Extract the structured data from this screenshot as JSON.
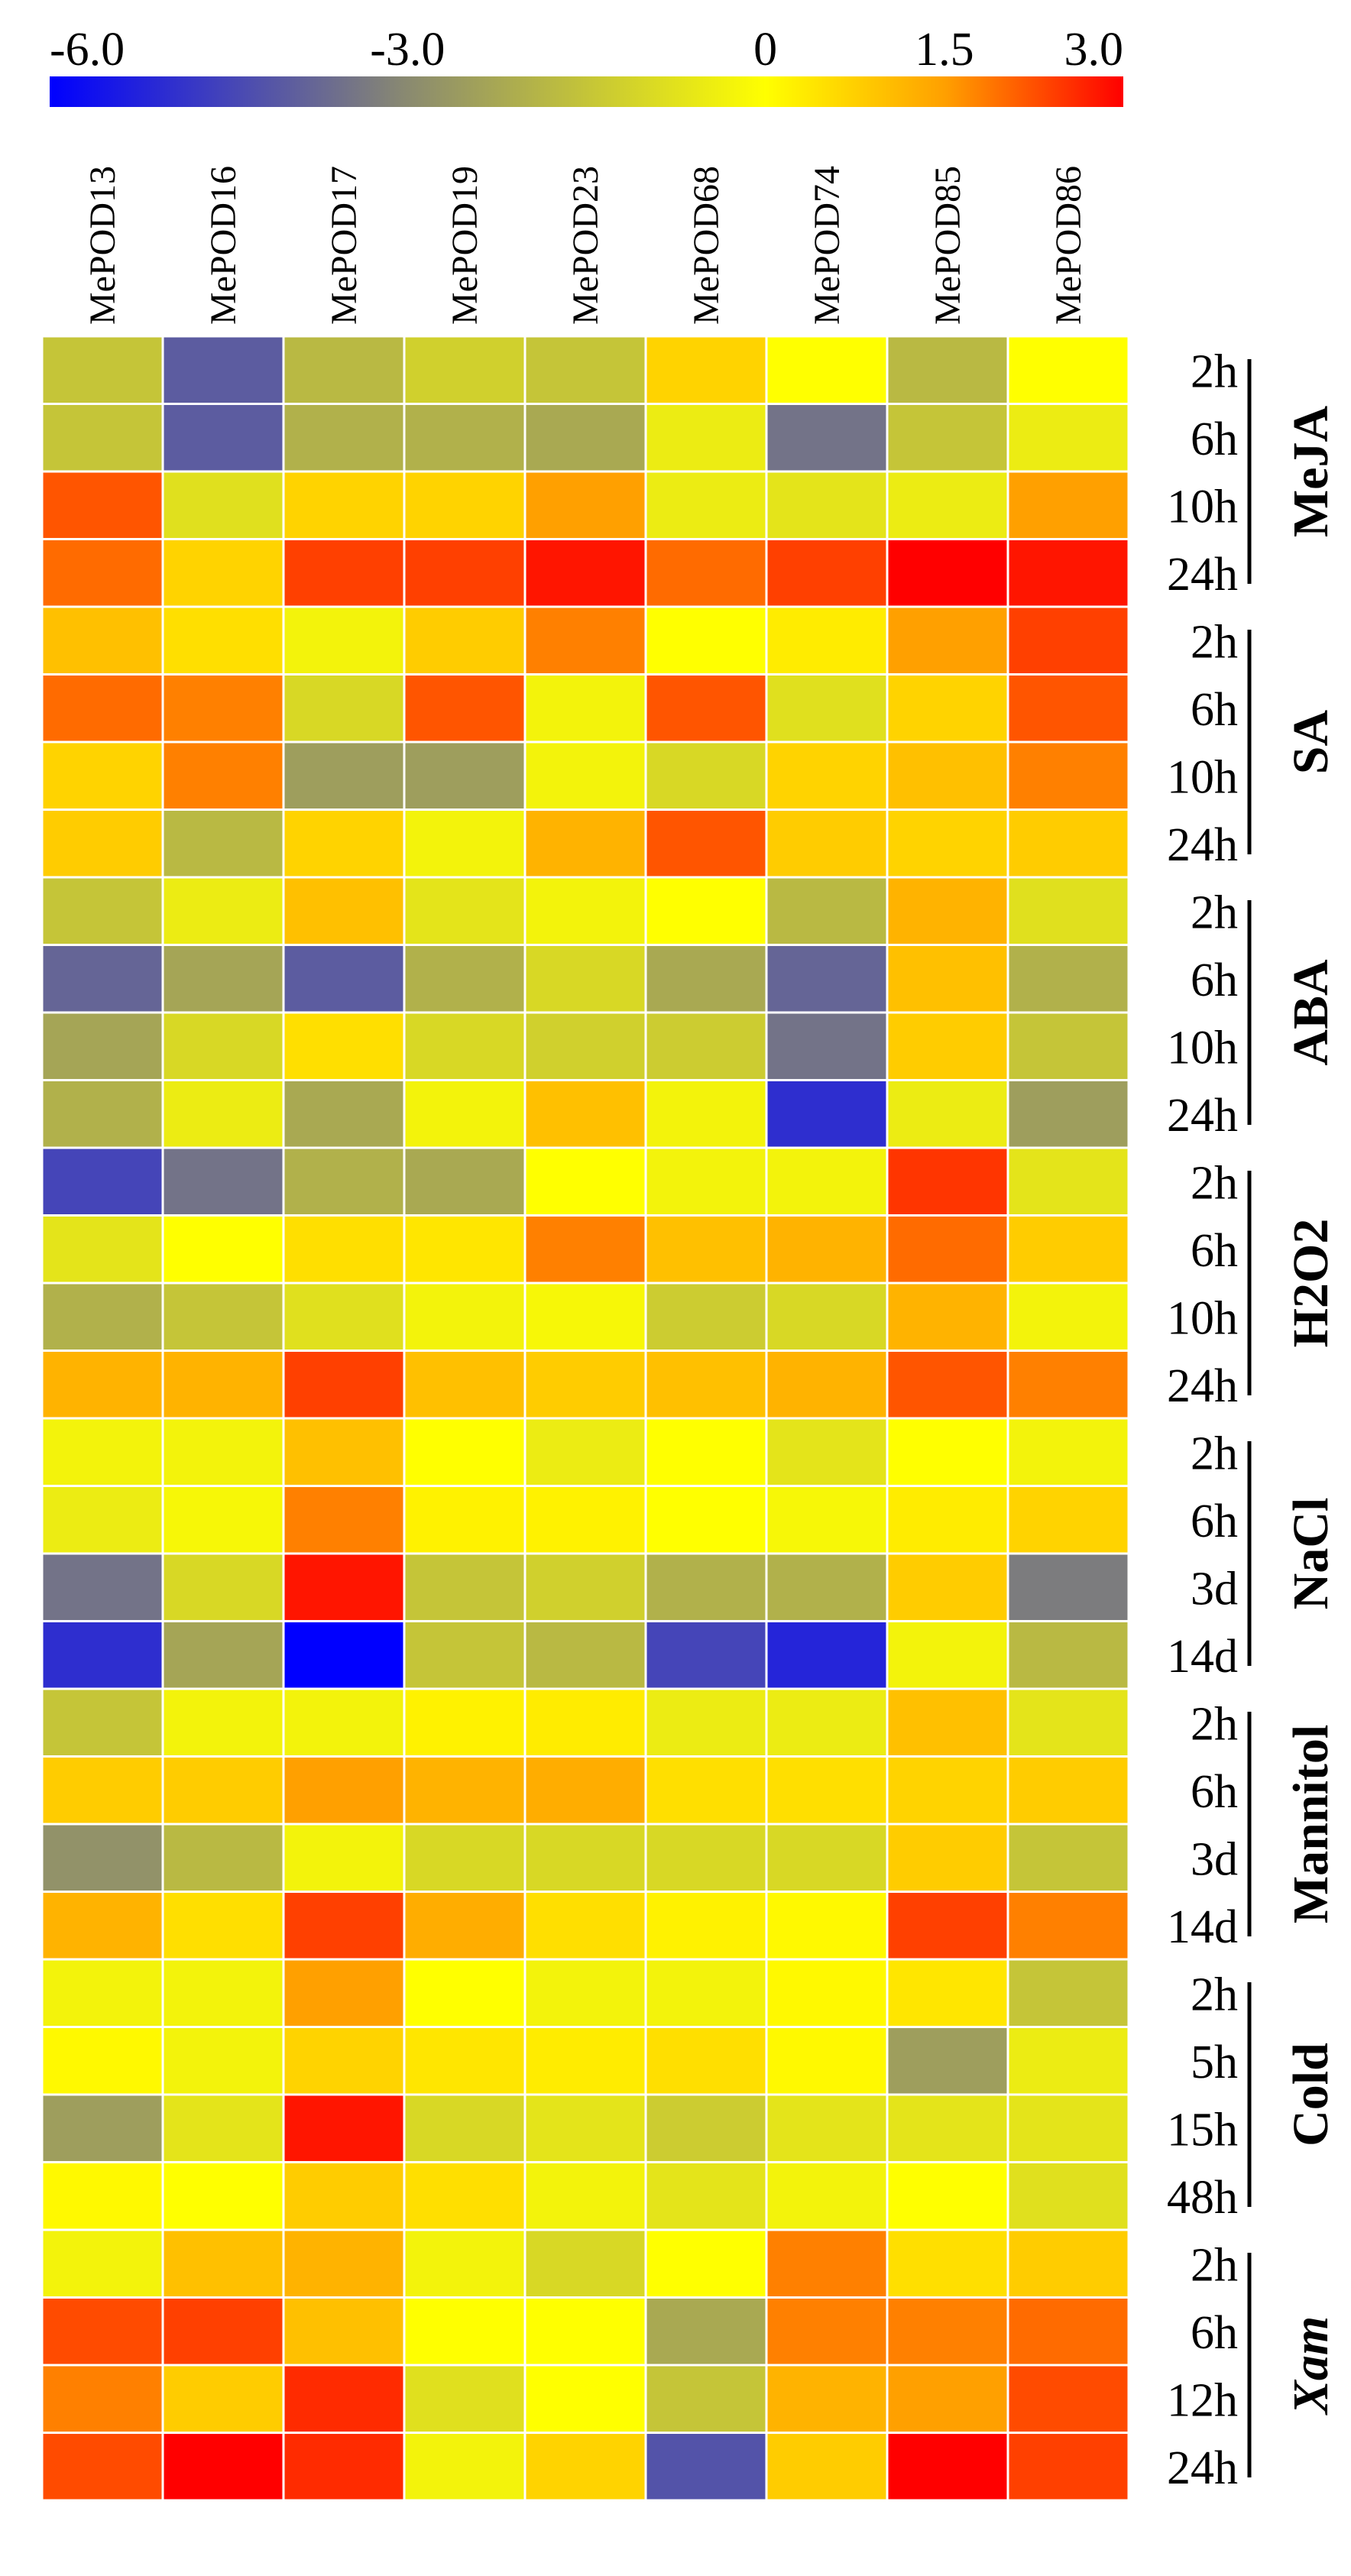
{
  "chart_data": {
    "type": "heatmap",
    "columns": [
      "MePOD13",
      "MePOD16",
      "MePOD17",
      "MePOD19",
      "MePOD23",
      "MePOD68",
      "MePOD74",
      "MePOD85",
      "MePOD86"
    ],
    "colorbar": {
      "min": -6.0,
      "max": 3.0,
      "ticks": [
        "-6.0",
        "-3.0",
        "0",
        "1.5",
        "3.0"
      ],
      "tick_values": [
        -6.0,
        -3.0,
        0,
        1.5,
        3.0
      ],
      "colors": [
        {
          "value": -6.0,
          "color": "#0000ff"
        },
        {
          "value": -3.0,
          "color": "#8a8a70"
        },
        {
          "value": 0,
          "color": "#ffff00"
        },
        {
          "value": 1.5,
          "color": "#ffa000"
        },
        {
          "value": 3.0,
          "color": "#ff0000"
        }
      ]
    },
    "groups": [
      {
        "name": "MeJA",
        "rows": [
          {
            "label": "2h",
            "values": [
              -1.5,
              -4.0,
              -1.8,
              -1.2,
              -1.5,
              0.7,
              0.0,
              -1.8,
              0.0
            ]
          },
          {
            "label": "6h",
            "values": [
              -1.5,
              -4.0,
              -2.0,
              -2.0,
              -2.2,
              -0.5,
              -3.5,
              -1.5,
              -0.5
            ]
          },
          {
            "label": "10h",
            "values": [
              2.2,
              -0.8,
              0.7,
              0.7,
              1.5,
              -0.5,
              -0.7,
              -0.5,
              1.5
            ]
          },
          {
            "label": "24h",
            "values": [
              2.0,
              0.7,
              2.4,
              2.4,
              2.8,
              2.0,
              2.4,
              3.0,
              2.8
            ]
          }
        ]
      },
      {
        "name": "SA",
        "rows": [
          {
            "label": "2h",
            "values": [
              1.0,
              0.5,
              -0.3,
              0.8,
              1.8,
              0.0,
              0.3,
              1.5,
              2.4
            ]
          },
          {
            "label": "6h",
            "values": [
              2.0,
              1.8,
              -1.0,
              2.2,
              -0.3,
              2.2,
              -0.8,
              0.7,
              2.2
            ]
          },
          {
            "label": "10h",
            "values": [
              0.7,
              1.8,
              -2.5,
              -2.5,
              -0.3,
              -1.0,
              0.7,
              1.0,
              1.8
            ]
          },
          {
            "label": "24h",
            "values": [
              0.8,
              -1.8,
              0.7,
              -0.3,
              1.2,
              2.2,
              0.8,
              0.7,
              0.8
            ]
          }
        ]
      },
      {
        "name": "ABA",
        "rows": [
          {
            "label": "2h",
            "values": [
              -1.5,
              -0.5,
              1.0,
              -0.7,
              -0.3,
              0.0,
              -1.8,
              1.2,
              -0.8
            ]
          },
          {
            "label": "6h",
            "values": [
              -3.8,
              -2.3,
              -4.0,
              -2.0,
              -1.0,
              -2.2,
              -3.8,
              1.0,
              -2.0
            ]
          },
          {
            "label": "10h",
            "values": [
              -2.3,
              -1.0,
              0.5,
              -1.0,
              -1.2,
              -1.3,
              -3.5,
              0.8,
              -1.5
            ]
          },
          {
            "label": "24h",
            "values": [
              -2.0,
              -0.5,
              -2.2,
              -0.3,
              1.0,
              -0.3,
              -5.0,
              -0.5,
              -2.5
            ]
          }
        ]
      },
      {
        "name": "H2O2",
        "rows": [
          {
            "label": "2h",
            "values": [
              -4.5,
              -3.5,
              -2.0,
              -2.2,
              0.0,
              -0.3,
              -0.3,
              2.5,
              -0.7
            ]
          },
          {
            "label": "6h",
            "values": [
              -0.7,
              0.0,
              0.5,
              0.4,
              1.8,
              1.0,
              1.2,
              2.0,
              0.8
            ]
          },
          {
            "label": "10h",
            "values": [
              -2.0,
              -1.5,
              -0.8,
              -0.3,
              -0.2,
              -1.3,
              -1.0,
              1.2,
              -0.3
            ]
          },
          {
            "label": "24h",
            "values": [
              1.2,
              1.2,
              2.4,
              1.0,
              0.8,
              1.0,
              1.2,
              2.2,
              1.8
            ]
          }
        ]
      },
      {
        "name": "NaCl",
        "rows": [
          {
            "label": "2h",
            "values": [
              -0.3,
              -0.3,
              1.0,
              0.0,
              -0.5,
              0.0,
              -0.7,
              0.0,
              -0.3
            ]
          },
          {
            "label": "6h",
            "values": [
              -0.5,
              -0.2,
              1.8,
              0.2,
              0.2,
              0.0,
              -0.2,
              0.3,
              0.7
            ]
          },
          {
            "label": "3d",
            "values": [
              -3.5,
              -1.0,
              2.8,
              -1.5,
              -1.2,
              -2.0,
              -2.0,
              0.8,
              -3.3
            ]
          },
          {
            "label": "14d",
            "values": [
              -5.0,
              -2.3,
              -6.0,
              -1.5,
              -1.8,
              -4.5,
              -5.2,
              -0.3,
              -1.8
            ]
          }
        ]
      },
      {
        "name": "Mannitol",
        "rows": [
          {
            "label": "2h",
            "values": [
              -1.5,
              -0.3,
              -0.3,
              0.2,
              0.3,
              -0.5,
              -0.5,
              1.0,
              -0.7
            ]
          },
          {
            "label": "6h",
            "values": [
              0.8,
              0.8,
              1.5,
              1.2,
              1.3,
              0.5,
              0.5,
              0.7,
              0.8
            ]
          },
          {
            "label": "3d",
            "values": [
              -2.8,
              -1.8,
              -0.3,
              -1.0,
              -1.0,
              -1.0,
              -1.0,
              0.8,
              -1.5
            ]
          },
          {
            "label": "14d",
            "values": [
              1.2,
              0.5,
              2.4,
              1.3,
              0.5,
              0.2,
              0.1,
              2.4,
              1.8
            ]
          }
        ]
      },
      {
        "name": "Cold",
        "rows": [
          {
            "label": "2h",
            "values": [
              -0.3,
              -0.3,
              1.5,
              0.0,
              -0.3,
              -0.3,
              0.1,
              0.4,
              -1.5
            ]
          },
          {
            "label": "5h",
            "values": [
              0.1,
              -0.3,
              0.7,
              0.4,
              0.3,
              0.5,
              0.1,
              -2.5,
              -0.5
            ]
          },
          {
            "label": "15h",
            "values": [
              -2.5,
              -0.7,
              2.8,
              -1.0,
              -0.7,
              -1.3,
              -0.7,
              -0.7,
              -0.7
            ]
          },
          {
            "label": "48h",
            "values": [
              0.1,
              0.0,
              0.8,
              0.5,
              -0.3,
              -0.7,
              -0.3,
              0.0,
              -0.8
            ]
          }
        ]
      },
      {
        "name": "Xam",
        "rows": [
          {
            "label": "2h",
            "values": [
              -0.3,
              1.0,
              1.2,
              -0.3,
              -1.0,
              0.0,
              1.8,
              0.5,
              0.8
            ]
          },
          {
            "label": "6h",
            "values": [
              2.3,
              2.4,
              1.0,
              0.0,
              0.0,
              -2.2,
              1.8,
              1.8,
              2.0
            ]
          },
          {
            "label": "12h",
            "values": [
              1.8,
              0.8,
              2.6,
              -0.8,
              0.0,
              -1.5,
              1.2,
              1.5,
              2.3
            ]
          },
          {
            "label": "24h",
            "values": [
              2.3,
              3.0,
              2.6,
              -0.3,
              0.7,
              -4.2,
              0.8,
              3.0,
              2.4
            ]
          }
        ]
      }
    ]
  }
}
